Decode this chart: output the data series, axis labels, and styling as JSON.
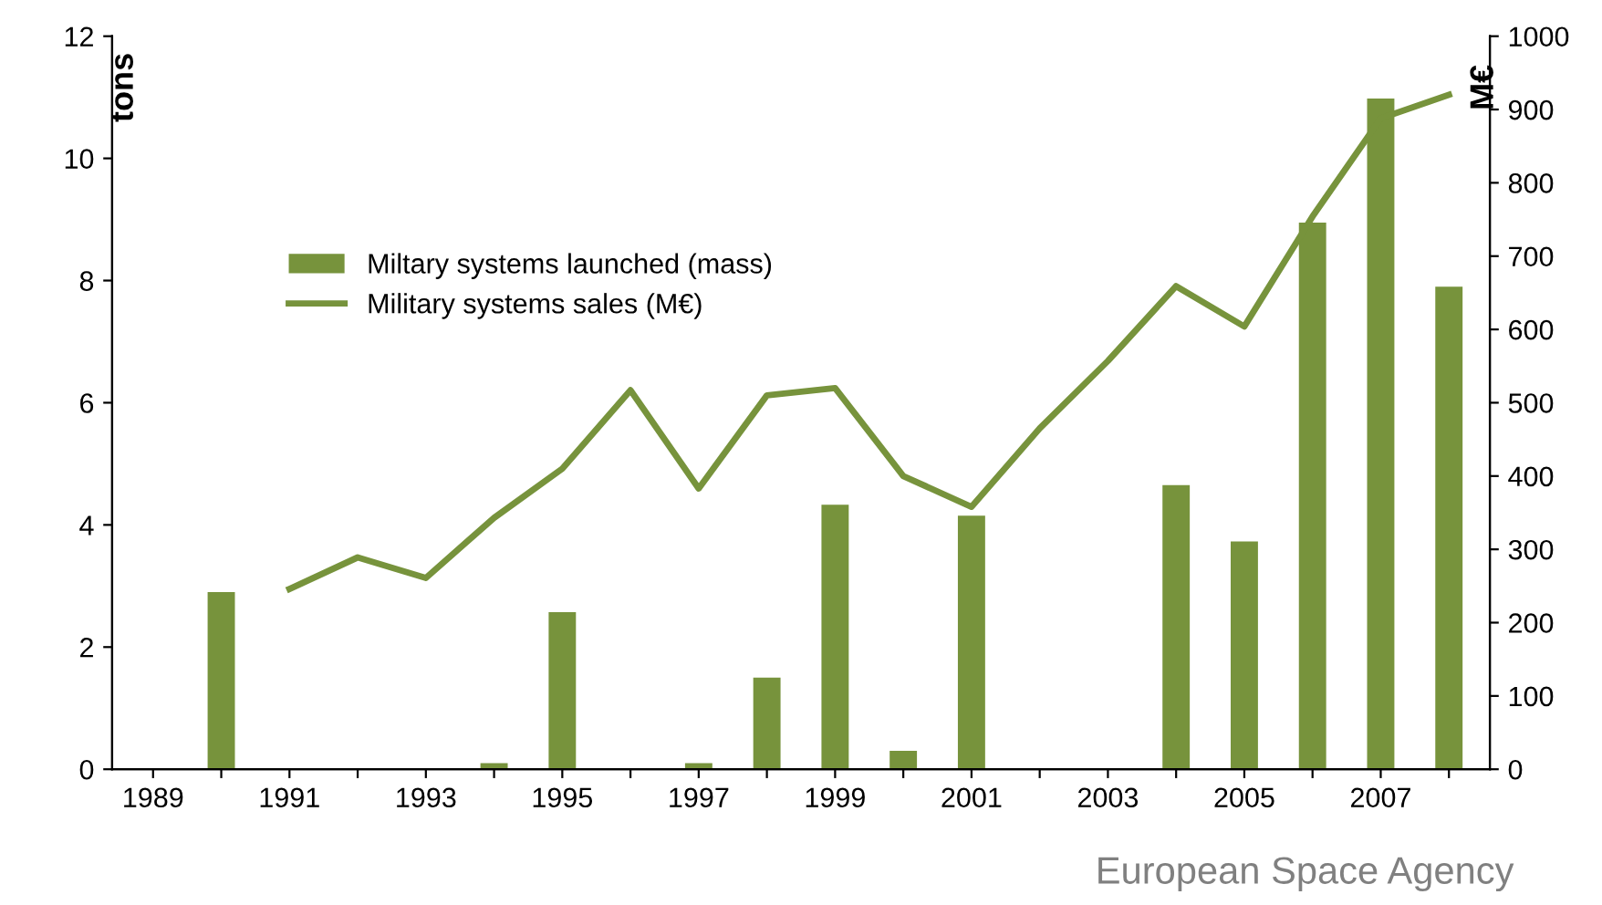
{
  "chart_data": {
    "type": "bar",
    "categories": [
      "1989",
      null,
      "1991",
      null,
      "1993",
      null,
      "1995",
      null,
      "1997",
      null,
      "1999",
      null,
      "2001",
      null,
      "2003",
      null,
      "2005",
      null,
      "2007",
      null
    ],
    "ylabel": "tons",
    "y2label": "M€",
    "series": [
      {
        "name": "Miltary systems launched (mass)",
        "color": "#77933c",
        "values": [
          null,
          2.9,
          null,
          null,
          null,
          0.1,
          2.57,
          null,
          0.1,
          1.5,
          4.33,
          0.3,
          4.15,
          null,
          null,
          4.65,
          3.73,
          8.95,
          10.98,
          7.9
        ]
      },
      {
        "name": "Military systems sales (M€)",
        "type": "line",
        "axis": "y2",
        "color": "#77933c",
        "values": [
          null,
          null,
          246,
          289,
          261,
          343,
          410,
          517,
          383,
          510,
          520,
          400,
          358,
          465,
          557,
          659,
          604,
          754,
          888,
          920
        ]
      }
    ],
    "ylim": [
      0,
      12
    ],
    "yticks": [
      0,
      2,
      4,
      6,
      8,
      10,
      12
    ],
    "y2lim": [
      0,
      1000
    ],
    "y2ticks": [
      0,
      100,
      200,
      300,
      400,
      500,
      600,
      700,
      800,
      900,
      1000
    ],
    "legend": "top left",
    "grid": false,
    "marker": "none",
    "line_style": "solid",
    "annotations": [
      "European Space Agency"
    ]
  }
}
